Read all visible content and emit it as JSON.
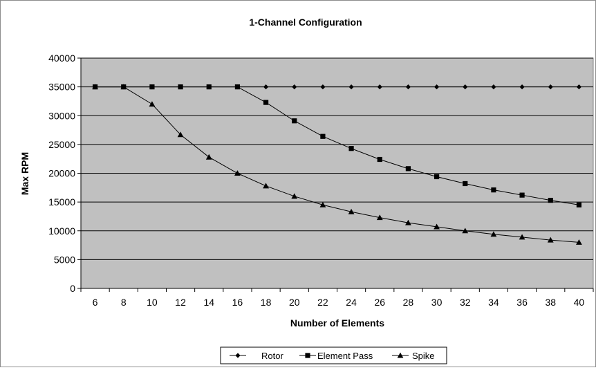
{
  "chart_data": {
    "type": "line",
    "title": "1-Channel Configuration",
    "xlabel": "Number of Elements",
    "ylabel": "Max RPM",
    "categories": [
      6,
      8,
      10,
      12,
      14,
      16,
      18,
      20,
      22,
      24,
      26,
      28,
      30,
      32,
      34,
      36,
      38,
      40
    ],
    "ylim": [
      0,
      40000
    ],
    "yticks": [
      0,
      5000,
      10000,
      15000,
      20000,
      25000,
      30000,
      35000,
      40000
    ],
    "grid": true,
    "plot_background": "#c0c0c0",
    "line_color": "#000000",
    "legend_position": "bottom",
    "series": [
      {
        "name": "Rotor",
        "marker": "diamond",
        "values": [
          35000,
          35000,
          35000,
          35000,
          35000,
          35000,
          35000,
          35000,
          35000,
          35000,
          35000,
          35000,
          35000,
          35000,
          35000,
          35000,
          35000,
          35000
        ]
      },
      {
        "name": "Element Pass",
        "marker": "square",
        "values": [
          35000,
          35000,
          35000,
          35000,
          35000,
          35000,
          32300,
          29100,
          26400,
          24300,
          22400,
          20800,
          19400,
          18200,
          17100,
          16200,
          15300,
          14500
        ]
      },
      {
        "name": "Spike",
        "marker": "triangle",
        "values": [
          35000,
          35000,
          32000,
          26700,
          22800,
          20000,
          17800,
          16000,
          14500,
          13300,
          12300,
          11400,
          10700,
          10000,
          9400,
          8900,
          8400,
          8000
        ]
      }
    ]
  }
}
